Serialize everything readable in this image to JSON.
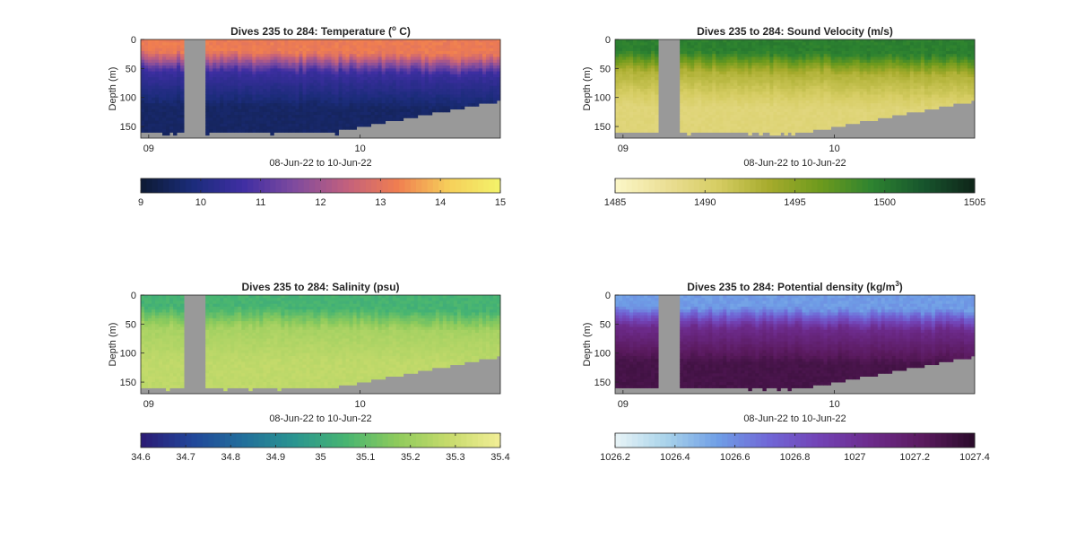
{
  "chart_data": [
    {
      "type": "heatmap",
      "title": "Dives 235 to 284: Temperature (",
      "title_sup": "o",
      "title_end": " C)",
      "ylabel": "Depth (m)",
      "xlabel": "08-Jun-22 to 10-Jun-22",
      "x_ticks": [
        "09",
        "10"
      ],
      "y_ticks": [
        "0",
        "50",
        "100",
        "150"
      ],
      "ylim": [
        0,
        170
      ],
      "colorbar_ticks": [
        "9",
        "10",
        "11",
        "12",
        "13",
        "14",
        "15"
      ],
      "clim": [
        9,
        15
      ],
      "colormap": [
        "#0d1a33",
        "#1b2c7a",
        "#3f2ea3",
        "#7f4b9e",
        "#c2607e",
        "#f07e50",
        "#f6cf5a",
        "#f3f36a"
      ],
      "profile": {
        "surface": 13.2,
        "thermocline": 10.6,
        "bottom": 9.6
      },
      "missing_color": "#999999"
    },
    {
      "type": "heatmap",
      "title": "Dives 235 to 284: Sound Velocity (m/s)",
      "ylabel": "Depth (m)",
      "xlabel": "08-Jun-22 to 10-Jun-22",
      "x_ticks": [
        "09",
        "10"
      ],
      "y_ticks": [
        "0",
        "50",
        "100",
        "150"
      ],
      "ylim": [
        0,
        170
      ],
      "colorbar_ticks": [
        "1485",
        "1490",
        "1495",
        "1500",
        "1505"
      ],
      "clim": [
        1485,
        1505
      ],
      "colormap": [
        "#fcf7c8",
        "#ebdf95",
        "#d6cd63",
        "#a6ab2c",
        "#6d9a1d",
        "#2d8330",
        "#17552d",
        "#0f2419"
      ],
      "profile": {
        "surface": 1499.5,
        "thermocline": 1493.0,
        "bottom": 1489.5
      },
      "missing_color": "#999999"
    },
    {
      "type": "heatmap",
      "title": "Dives 235 to 284: Salinity (psu)",
      "ylabel": "Depth (m)",
      "xlabel": "08-Jun-22 to 10-Jun-22",
      "x_ticks": [
        "09",
        "10"
      ],
      "y_ticks": [
        "0",
        "50",
        "100",
        "150"
      ],
      "ylim": [
        0,
        170
      ],
      "colorbar_ticks": [
        "34.6",
        "34.7",
        "34.8",
        "34.9",
        "35",
        "35.1",
        "35.2",
        "35.3",
        "35.4"
      ],
      "clim": [
        34.6,
        35.4
      ],
      "colormap": [
        "#2a1a74",
        "#21469a",
        "#226f9b",
        "#2a9590",
        "#48b571",
        "#8fcb5c",
        "#c7db6c",
        "#f2ee96"
      ],
      "profile": {
        "surface": 35.05,
        "thermocline": 35.22,
        "bottom": 35.27
      },
      "missing_color": "#999999"
    },
    {
      "type": "heatmap",
      "title": "Dives 235 to 284: Potential density (kg/m",
      "title_sup": "3",
      "title_end": ")",
      "ylabel": "Depth (m)",
      "xlabel": "08-Jun-22 to 10-Jun-22",
      "x_ticks": [
        "09",
        "10"
      ],
      "y_ticks": [
        "0",
        "50",
        "100",
        "150"
      ],
      "ylim": [
        0,
        170
      ],
      "colorbar_ticks": [
        "1026.2",
        "1026.4",
        "1026.6",
        "1026.8",
        "1027",
        "1027.2",
        "1027.4"
      ],
      "clim": [
        1026.2,
        1027.4
      ],
      "colormap": [
        "#e8f4f7",
        "#a9d3ea",
        "#6f9ee6",
        "#7066d6",
        "#7242b4",
        "#6c2a8a",
        "#5a1a5e",
        "#2a0b2a"
      ],
      "profile": {
        "surface": 1026.55,
        "thermocline": 1027.05,
        "bottom": 1027.3
      },
      "missing_color": "#999999"
    }
  ]
}
